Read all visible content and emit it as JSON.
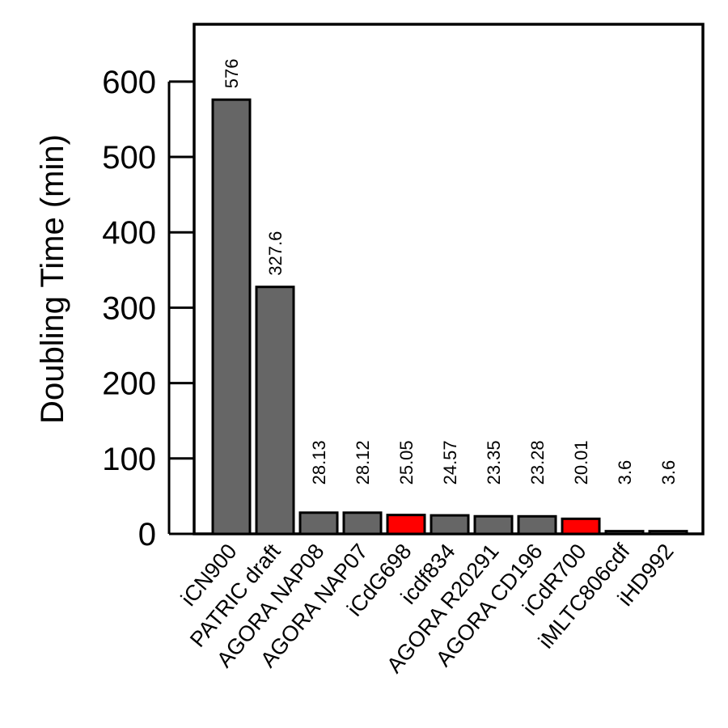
{
  "chart_data": {
    "type": "bar",
    "categories": [
      "iCN900",
      "PATRIC draft",
      "AGORA NAP08",
      "AGORA NAP07",
      "iCdG698",
      "icdf834",
      "AGORA R20291",
      "AGORA CD196",
      "iCdR700",
      "iMLTC806cdf",
      "iHD992"
    ],
    "values": [
      576,
      327.6,
      28.13,
      28.12,
      25.05,
      24.57,
      23.35,
      23.28,
      20.01,
      3.6,
      3.6
    ],
    "data_labels": [
      "576",
      "327.6",
      "28.13",
      "28.12",
      "25.05",
      "24.57",
      "23.35",
      "23.28",
      "20.01",
      "3.6",
      "3.6"
    ],
    "highlighted": [
      "iCdG698",
      "iCdR700"
    ],
    "title": "",
    "xlabel": "",
    "ylabel": "Doubling Time (min)",
    "ylim": [
      0,
      676
    ],
    "yticks": [
      0,
      100,
      200,
      300,
      400,
      500,
      600
    ],
    "grid": false,
    "legend": "none",
    "colors": {
      "bar": "#666666",
      "highlight": "#ff0000",
      "axis": "#000000"
    }
  }
}
